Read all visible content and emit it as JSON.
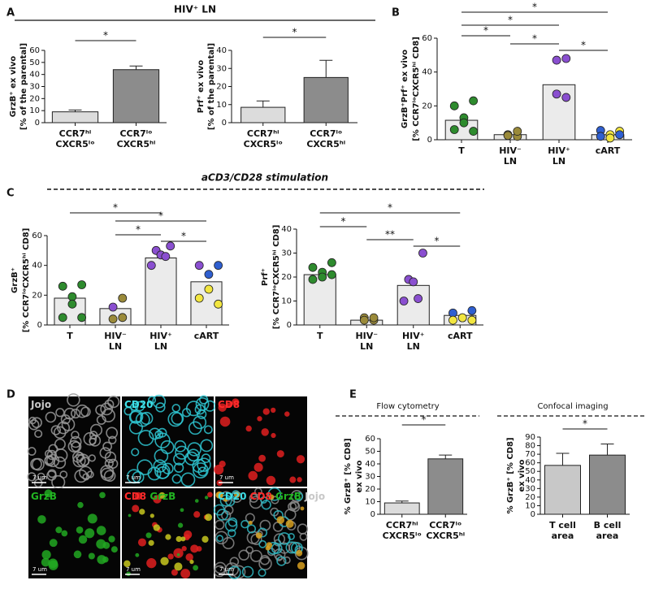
{
  "panel_labels": [
    "A",
    "B",
    "C",
    "D",
    "E"
  ],
  "headers": {
    "hiv_ln": "HIV⁺ LN",
    "stimulation": "aCD3/CD28 stimulation",
    "flow": "Flow cytometry",
    "confocal": "Confocal imaging"
  },
  "images": [
    {
      "label": [
        {
          "text": "Jojo",
          "color": "#c8c8c8"
        }
      ]
    },
    {
      "label": [
        {
          "text": "CD20",
          "color": "#3ee0e8"
        }
      ]
    },
    {
      "label": [
        {
          "text": "CD8",
          "color": "#ff2a2a"
        }
      ]
    },
    {
      "label": [
        {
          "text": "GrzB",
          "color": "#22b422"
        }
      ]
    },
    {
      "label": [
        {
          "text": "CD8",
          "color": "#ff2a2a"
        },
        {
          "text": "GrzB",
          "color": "#22b422"
        }
      ]
    },
    {
      "label": [
        {
          "text": "CD20",
          "color": "#3ee0e8"
        },
        {
          "text": "CD8",
          "color": "#ff2a2a"
        },
        {
          "text": "GrzB",
          "color": "#22b422"
        },
        {
          "text": "Jojo",
          "color": "#c8c8c8"
        }
      ]
    }
  ],
  "scale_bar": "7 um",
  "chart_data": [
    {
      "type": "bar",
      "ylabel": [
        "GrzB⁺ ex vivo",
        "[% of the parental]"
      ],
      "categories": [
        [
          "CCR7ʰⁱ",
          "CXCR5ˡᵒ"
        ],
        [
          "CCR7ˡᵒ",
          "CXCR5ʰⁱ"
        ]
      ],
      "values": [
        9,
        44
      ],
      "errors": [
        1.5,
        3
      ],
      "colors": [
        "#dcdcdc",
        "#8c8c8c"
      ],
      "ylim": [
        0,
        60
      ],
      "yticks": [
        0,
        10,
        20,
        30,
        40,
        50,
        60
      ],
      "significance": [
        {
          "pair": [
            0,
            1
          ],
          "label": "*"
        }
      ]
    },
    {
      "type": "bar",
      "ylabel": [
        "Prf⁺ ex vivo",
        "[% of the parental]"
      ],
      "categories": [
        [
          "CCR7ʰⁱ",
          "CXCR5ˡᵒ"
        ],
        [
          "CCR7ˡᵒ",
          "CXCR5ʰⁱ"
        ]
      ],
      "values": [
        8.5,
        25
      ],
      "errors": [
        3.5,
        9.5
      ],
      "colors": [
        "#dcdcdc",
        "#8c8c8c"
      ],
      "ylim": [
        0,
        40
      ],
      "yticks": [
        0,
        10,
        20,
        30,
        40
      ],
      "significance": [
        {
          "pair": [
            0,
            1
          ],
          "label": "*"
        }
      ]
    },
    {
      "type": "dotbar",
      "ylabel": [
        "GrzB⁺Prf⁺ ex vivo",
        "[% CCR7ˡᵒCXCR5ʰⁱ CD8]"
      ],
      "categories": [
        [
          "T"
        ],
        [
          "HIV⁻",
          "LN"
        ],
        [
          "HIV⁺",
          "LN"
        ],
        [
          "cART"
        ]
      ],
      "values": [
        11.5,
        3,
        32.5,
        3
      ],
      "color": "#ebebeb",
      "points": [
        [
          23,
          20,
          13,
          10,
          6,
          5
        ],
        [
          2,
          3,
          2.5,
          5
        ],
        [
          48,
          47,
          27,
          25
        ],
        [
          5,
          5.5,
          3,
          1,
          2,
          3
        ]
      ],
      "point_colors": [
        [
          "#2e8b2e",
          "#2e8b2e",
          "#2e8b2e",
          "#2e8b2e",
          "#2e8b2e",
          "#2e8b2e"
        ],
        [
          "#9a8a3a",
          "#9a8a3a",
          "#9a8a3a",
          "#9a8a3a"
        ],
        [
          "#8a4fd0",
          "#8a4fd0",
          "#8a4fd0",
          "#8a4fd0"
        ],
        [
          "#f2e640",
          "#2f5fd0",
          "#f2e640",
          "#f2e640",
          "#2f5fd0",
          "#2f5fd0"
        ]
      ],
      "ylim": [
        0,
        60
      ],
      "yticks": [
        0,
        20,
        40,
        60
      ],
      "significance": [
        {
          "pair": [
            0,
            3
          ],
          "label": "*"
        },
        {
          "pair": [
            0,
            2
          ],
          "label": "*"
        },
        {
          "pair": [
            0,
            1
          ],
          "label": "*"
        },
        {
          "pair": [
            1,
            2
          ],
          "label": "*"
        },
        {
          "pair": [
            2,
            3
          ],
          "label": "*"
        }
      ]
    },
    {
      "type": "dotbar",
      "ylabel": [
        "GrzB⁺",
        "[% CCR7ˡᵒCXCR5ʰⁱ CD8]"
      ],
      "categories": [
        [
          "T"
        ],
        [
          "HIV⁻",
          "LN"
        ],
        [
          "HIV⁺",
          "LN"
        ],
        [
          "cART"
        ]
      ],
      "values": [
        18,
        11,
        45,
        29
      ],
      "color": "#ebebeb",
      "points": [
        [
          27,
          26,
          19,
          14,
          5,
          5
        ],
        [
          18,
          12,
          4,
          5
        ],
        [
          53,
          50,
          47,
          46,
          40
        ],
        [
          40,
          40,
          34,
          24,
          18,
          14
        ]
      ],
      "point_colors": [
        [
          "#2e8b2e",
          "#2e8b2e",
          "#2e8b2e",
          "#2e8b2e",
          "#2e8b2e",
          "#2e8b2e"
        ],
        [
          "#9a8a3a",
          "#8a4fd0",
          "#9a8a3a",
          "#9a8a3a"
        ],
        [
          "#8a4fd0",
          "#8a4fd0",
          "#8a4fd0",
          "#8a4fd0",
          "#8a4fd0"
        ],
        [
          "#2f5fd0",
          "#8a4fd0",
          "#2f5fd0",
          "#f2e640",
          "#f2e640",
          "#f2e640"
        ]
      ],
      "ylim": [
        0,
        60
      ],
      "yticks": [
        0,
        20,
        40,
        60
      ],
      "significance": [
        {
          "pair": [
            0,
            2
          ],
          "label": "*"
        },
        {
          "pair": [
            1,
            3
          ],
          "label": "*"
        },
        {
          "pair": [
            1,
            2
          ],
          "label": "*"
        },
        {
          "pair": [
            2,
            3
          ],
          "label": "*"
        }
      ]
    },
    {
      "type": "dotbar",
      "ylabel": [
        "Prf⁺",
        "[% CCR7ˡᵒCXCR5ʰⁱ CD8]"
      ],
      "categories": [
        [
          "T"
        ],
        [
          "HIV⁻",
          "LN"
        ],
        [
          "HIV⁺",
          "LN"
        ],
        [
          "cART"
        ]
      ],
      "values": [
        21,
        2,
        16.5,
        4
      ],
      "color": "#ebebeb",
      "points": [
        [
          26,
          24,
          22,
          20,
          19,
          21
        ],
        [
          2,
          3,
          2,
          3
        ],
        [
          30,
          19,
          18,
          11,
          10
        ],
        [
          6,
          5,
          3,
          3,
          2,
          2
        ]
      ],
      "point_colors": [
        [
          "#2e8b2e",
          "#2e8b2e",
          "#2e8b2e",
          "#2e8b2e",
          "#2e8b2e",
          "#2e8b2e"
        ],
        [
          "#9a8a3a",
          "#9a8a3a",
          "#9a8a3a",
          "#9a8a3a"
        ],
        [
          "#8a4fd0",
          "#8a4fd0",
          "#8a4fd0",
          "#8a4fd0",
          "#8a4fd0"
        ],
        [
          "#2f5fd0",
          "#2f5fd0",
          "#8a4fd0",
          "#f2e640",
          "#f2e640",
          "#f2e640"
        ]
      ],
      "ylim": [
        0,
        40
      ],
      "yticks": [
        0,
        10,
        20,
        30,
        40
      ],
      "significance": [
        {
          "pair": [
            0,
            3
          ],
          "label": "*"
        },
        {
          "pair": [
            0,
            1
          ],
          "label": "*"
        },
        {
          "pair": [
            1,
            2
          ],
          "label": "**"
        },
        {
          "pair": [
            2,
            3
          ],
          "label": "*"
        }
      ]
    },
    {
      "type": "bar",
      "ylabel": [
        "% GrzB⁺ [% CD8]",
        "ex vivo"
      ],
      "categories": [
        [
          "CCR7ʰⁱ",
          "CXCR5ˡᵒ"
        ],
        [
          "CCR7ˡᵒ",
          "CXCR5ʰⁱ"
        ]
      ],
      "values": [
        9,
        44
      ],
      "errors": [
        1.5,
        3
      ],
      "colors": [
        "#dcdcdc",
        "#8c8c8c"
      ],
      "ylim": [
        0,
        60
      ],
      "yticks": [
        0,
        10,
        20,
        30,
        40,
        50,
        60
      ],
      "significance": [
        {
          "pair": [
            0,
            1
          ],
          "label": "*"
        }
      ]
    },
    {
      "type": "bar",
      "ylabel": [
        "% GrzB⁺ [% CD8]",
        "ex vivo"
      ],
      "categories": [
        [
          "T cell",
          "area"
        ],
        [
          "B cell",
          "area"
        ]
      ],
      "values": [
        57,
        69
      ],
      "errors": [
        14,
        13
      ],
      "colors": [
        "#c8c8c8",
        "#8c8c8c"
      ],
      "ylim": [
        0,
        90
      ],
      "yticks": [
        0,
        10,
        20,
        30,
        40,
        50,
        60,
        70,
        80,
        90
      ],
      "significance": [
        {
          "pair": [
            0,
            1
          ],
          "label": "*"
        }
      ]
    }
  ]
}
